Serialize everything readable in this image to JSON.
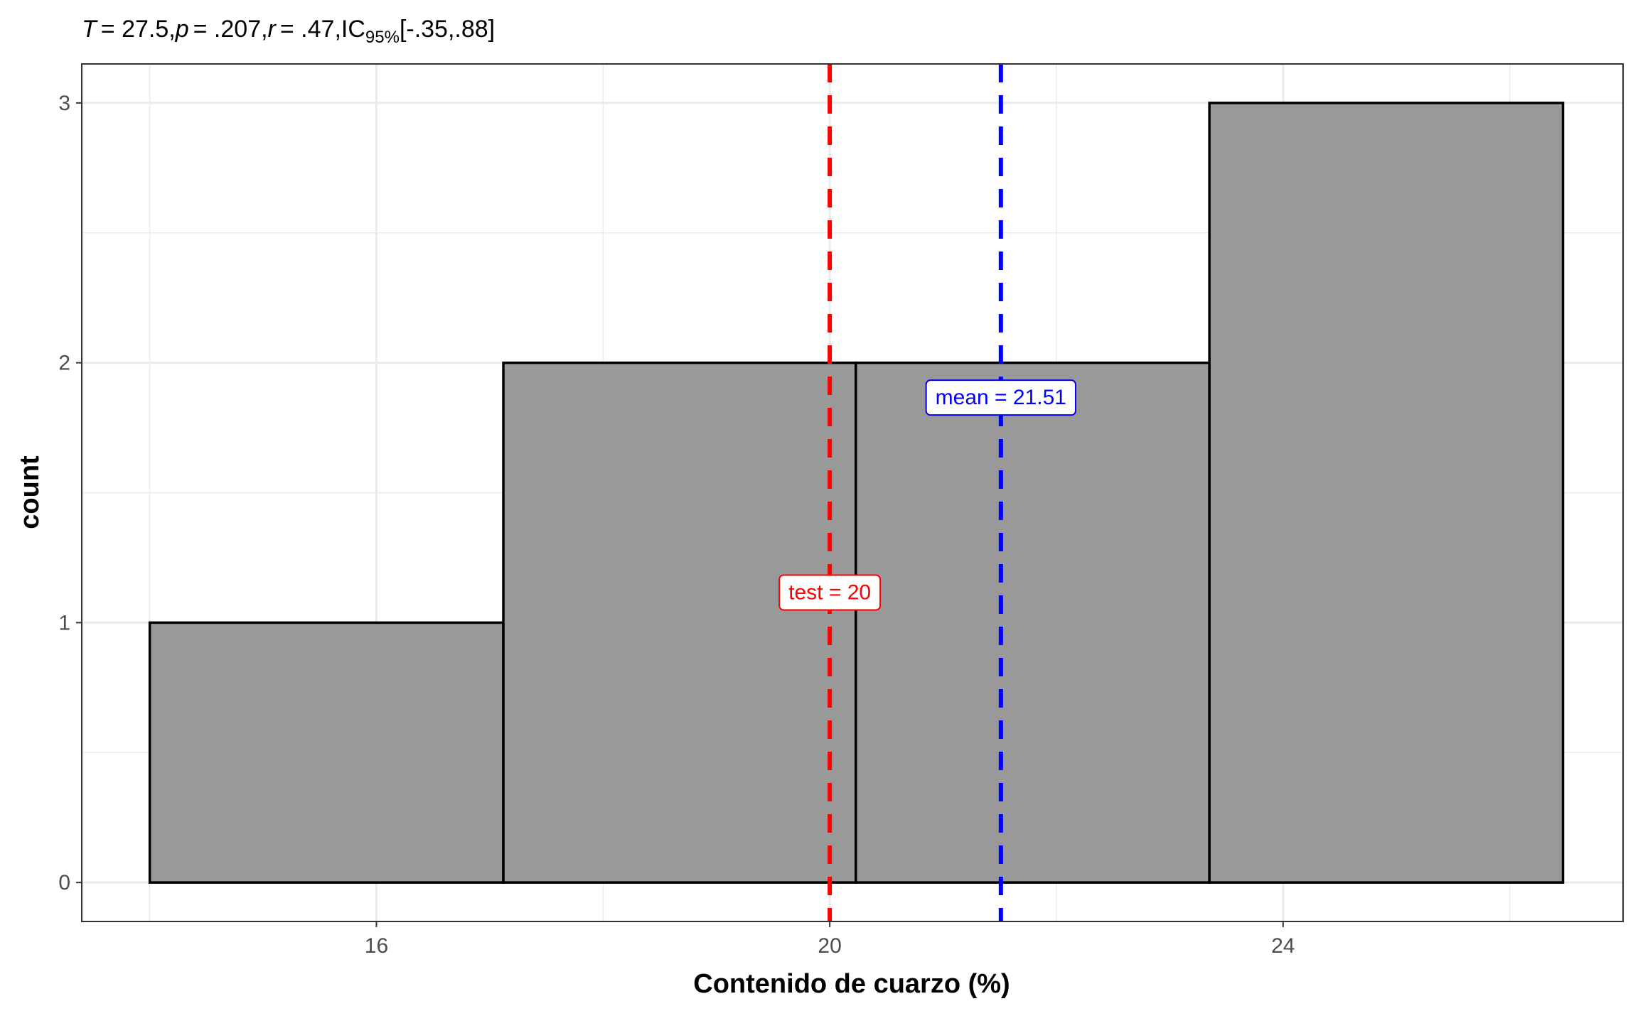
{
  "chart_data": {
    "type": "bar",
    "subtitle": {
      "stat_name": "T",
      "stat_value": "= 27.5,",
      "p_name": "p",
      "p_value": "= .207,",
      "r_name": "r",
      "r_value": "= .47,",
      "ci_name": "IC",
      "ci_sub": "95%",
      "ci_value": "[-.35,.88]"
    },
    "xlabel": "Contenido de cuarzo (%)",
    "ylabel": "count",
    "xlim": [
      13.4,
      27.0
    ],
    "ylim": [
      -0.15,
      3.15
    ],
    "x_ticks": [
      {
        "value": 16,
        "label": "16"
      },
      {
        "value": 20,
        "label": "20"
      },
      {
        "value": 24,
        "label": "24"
      }
    ],
    "y_ticks": [
      {
        "value": 0,
        "label": "0"
      },
      {
        "value": 1,
        "label": "1"
      },
      {
        "value": 2,
        "label": "2"
      },
      {
        "value": 3,
        "label": "3"
      }
    ],
    "bins": [
      {
        "x_start": 14.0,
        "x_end": 17.12,
        "count": 1
      },
      {
        "x_start": 17.12,
        "x_end": 20.23,
        "count": 2
      },
      {
        "x_start": 20.23,
        "x_end": 23.35,
        "count": 2
      },
      {
        "x_start": 23.35,
        "x_end": 26.47,
        "count": 3
      }
    ],
    "reference_lines": [
      {
        "name": "test",
        "text": "test = 20",
        "value": 20,
        "color": "#ff0000",
        "label_y": 1.12
      },
      {
        "name": "mean",
        "text": "mean = 21.51",
        "value": 21.51,
        "color": "#0000ff",
        "label_y": 1.87
      }
    ],
    "bar_fill": "#999999",
    "bar_stroke": "#000000",
    "grid": true
  }
}
